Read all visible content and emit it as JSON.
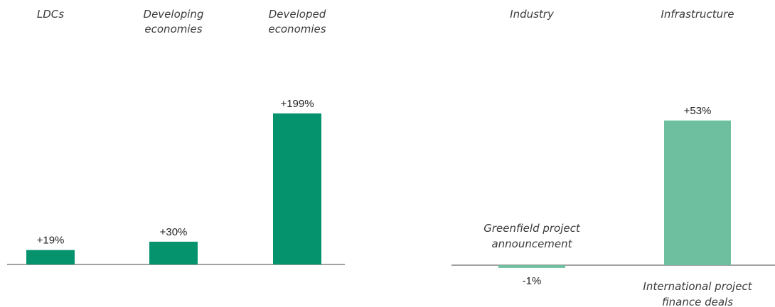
{
  "chart_data": [
    {
      "type": "bar",
      "categories": [
        "LDCs",
        "Developing economies",
        "Developed economies"
      ],
      "category_lines": [
        [
          "LDCs"
        ],
        [
          "Developing",
          "economies"
        ],
        [
          "Developed",
          "economies"
        ]
      ],
      "values": [
        19,
        30,
        199
      ],
      "value_labels": [
        "+19%",
        "+30%",
        "+199%"
      ],
      "title": "",
      "xlabel": "",
      "ylabel": "",
      "ylim": [
        0,
        200
      ],
      "grid": false,
      "colors": [
        "#05936e",
        "#05936e",
        "#05936e"
      ]
    },
    {
      "type": "bar",
      "categories": [
        "Industry",
        "Infrastructure"
      ],
      "category_lines": [
        [
          "Industry"
        ],
        [
          "Infrastructure"
        ]
      ],
      "values": [
        -1,
        53
      ],
      "value_labels": [
        "-1%",
        "+53%"
      ],
      "bar_notes": [
        [
          "Greenfield project",
          "announcement"
        ],
        [
          "International project",
          "finance deals"
        ]
      ],
      "title": "",
      "xlabel": "",
      "ylabel": "",
      "ylim": [
        -2,
        60
      ],
      "grid": false,
      "colors": [
        "#6dbf9f",
        "#6dbf9f"
      ]
    }
  ],
  "axis_color": "#6b6b6b"
}
